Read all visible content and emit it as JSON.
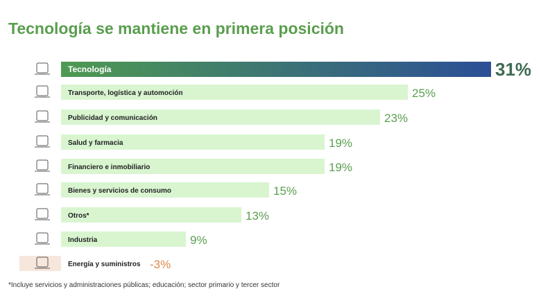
{
  "chart_data": {
    "type": "bar",
    "orientation": "horizontal",
    "title": "Tecnología se mantiene en primera posición",
    "categories": [
      "Tecnología",
      "Transporte, logística y automoción",
      "Publicidad y comunicación",
      "Salud y farmacia",
      "Financiero e inmobiliario",
      "Bienes y servicios de consumo",
      "Otros*",
      "Industria",
      "Energía y suministros"
    ],
    "values": [
      31,
      25,
      23,
      19,
      19,
      15,
      13,
      9,
      -3
    ],
    "value_labels": [
      "31%",
      "25%",
      "23%",
      "19%",
      "19%",
      "15%",
      "13%",
      "9%",
      "-3%"
    ],
    "icons": [
      "laptop-lock-icon",
      "warehouse-truck-icon",
      "chat-bubbles-icon",
      "health-shield-icon",
      "finance-building-icon",
      "consumer-goods-icon",
      "globe-briefcase-icon",
      "factory-icon",
      "energy-icon"
    ],
    "xlabel": "",
    "ylabel": "",
    "xlim": [
      -3,
      31
    ],
    "colors": {
      "highlight_start": "#4e9a52",
      "highlight_end": "#2c4f96",
      "bar": "#d8f5d0",
      "negative": "#f7e6dc",
      "label_green": "#5a9e4f",
      "label_orange": "#e08a4a",
      "highlight_label": "#3e6b52"
    }
  },
  "footnote": "*Incluye servicios y administraciones públicas; educación; sector primario y tercer sector"
}
